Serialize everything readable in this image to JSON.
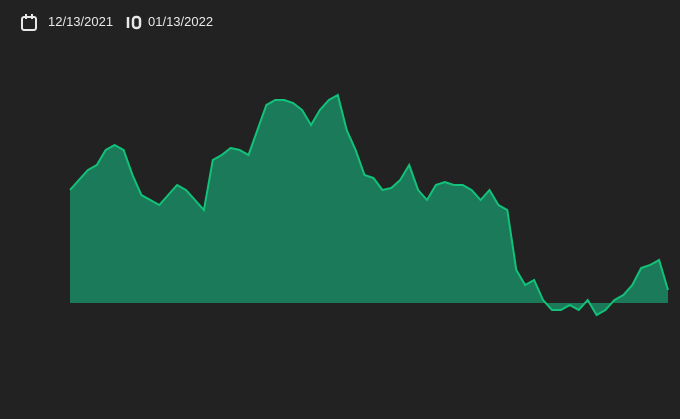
{
  "date_range": {
    "start": "12/13/2021",
    "end": "01/13/2022"
  },
  "chart_data": {
    "type": "area",
    "color": "#1a8a63",
    "line_color": "#12c27a",
    "values": [
      113,
      123,
      133,
      138,
      153,
      158,
      153,
      128,
      108,
      103,
      98,
      108,
      118,
      113,
      103,
      93,
      143,
      148,
      155,
      153,
      148,
      173,
      198,
      203,
      203,
      200,
      193,
      178,
      193,
      203,
      208,
      173,
      153,
      128,
      125,
      113,
      115,
      123,
      138,
      113,
      103,
      118,
      121,
      118,
      118,
      113,
      103,
      113,
      98,
      93,
      33,
      18,
      23,
      3,
      -7,
      -7,
      -2,
      -7,
      3,
      -12,
      -7,
      3,
      8,
      18,
      35,
      38,
      43,
      13
    ],
    "ylim": [
      -40,
      220
    ]
  }
}
